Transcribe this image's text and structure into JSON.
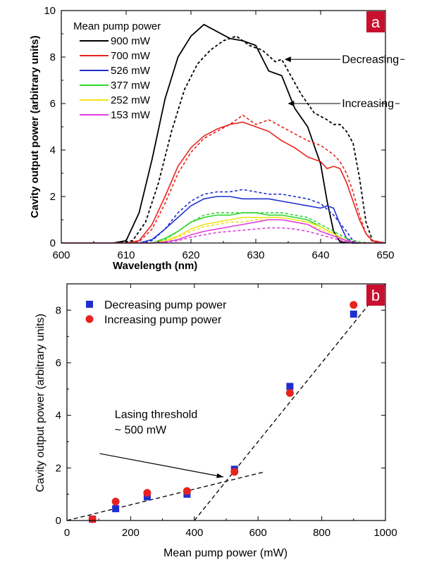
{
  "chart_data": [
    {
      "type": "line",
      "panel_label": "a",
      "panel_color": "#c8102e",
      "xlabel": "Wavelength (nm)",
      "ylabel": "Cavity output power (arbitrary units)",
      "xlim": [
        600,
        650
      ],
      "ylim": [
        0,
        10
      ],
      "xticks": [
        600,
        610,
        620,
        630,
        640,
        650
      ],
      "yticks": [
        0,
        2,
        4,
        6,
        8,
        10
      ],
      "grid": false,
      "legend_title": "Mean pump power",
      "legend_position": "top-left",
      "annotations": [
        {
          "text": "Decreasing",
          "points_to": [
            634,
            7.9
          ],
          "label_at": [
            643.5,
            7.9
          ]
        },
        {
          "text": "Increasing",
          "points_to": [
            634.5,
            6.0
          ],
          "label_at": [
            643.5,
            6.0
          ]
        }
      ],
      "series": [
        {
          "name": "900 mW",
          "color": "#000000",
          "solid": {
            "x": [
              600,
              608,
              610,
              612,
              614,
              616,
              618,
              620,
              622,
              624,
              626,
              628,
              630,
              632,
              634,
              636,
              637,
              638,
              639,
              640,
              641,
              642,
              643,
              645,
              650
            ],
            "y": [
              0,
              0,
              0.1,
              1.3,
              3.6,
              6.2,
              8.0,
              8.9,
              9.4,
              9.1,
              8.8,
              8.7,
              8.5,
              7.4,
              7.2,
              5.8,
              5.4,
              5.0,
              4.2,
              3.4,
              1.8,
              0.5,
              0.05,
              0,
              0
            ]
          },
          "dashed": {
            "x": [
              600,
              609,
              611,
              613,
              615,
              617,
              619,
              621,
              623,
              625,
              627,
              629,
              631,
              633,
              634,
              635,
              637,
              639,
              641,
              642,
              643,
              644,
              645,
              646,
              647,
              648,
              650
            ],
            "y": [
              0,
              0,
              0.1,
              0.9,
              2.6,
              4.8,
              6.6,
              7.7,
              8.3,
              8.7,
              8.9,
              8.5,
              8.3,
              7.8,
              7.9,
              7.4,
              6.4,
              5.6,
              5.3,
              5.1,
              5.1,
              4.8,
              4.3,
              2.8,
              0.9,
              0.1,
              0
            ]
          }
        },
        {
          "name": "700 mW",
          "color": "#e8231f",
          "solid": {
            "x": [
              600,
              610,
              612,
              614,
              616,
              618,
              620,
              622,
              624,
              626,
              628,
              630,
              632,
              634,
              636,
              638,
              640,
              641,
              642,
              643,
              644,
              645,
              646,
              647,
              648,
              650
            ],
            "y": [
              0,
              0,
              0.1,
              0.8,
              2.0,
              3.3,
              4.1,
              4.6,
              4.9,
              5.1,
              5.2,
              5.0,
              4.8,
              4.4,
              4.1,
              3.7,
              3.5,
              3.2,
              3.3,
              3.2,
              2.6,
              1.8,
              1.0,
              0.4,
              0.1,
              0
            ]
          },
          "dashed": {
            "x": [
              600,
              610,
              612,
              614,
              616,
              618,
              620,
              622,
              624,
              626,
              628,
              630,
              632,
              634,
              636,
              638,
              640,
              641,
              642,
              643,
              644,
              645,
              646,
              647,
              648,
              650
            ],
            "y": [
              0,
              0,
              0.05,
              0.6,
              1.7,
              3.0,
              3.9,
              4.5,
              4.8,
              5.1,
              5.5,
              5.1,
              5.3,
              5.0,
              4.7,
              4.4,
              4.2,
              4.0,
              3.8,
              3.5,
              3.0,
              2.2,
              1.2,
              0.4,
              0.05,
              0
            ]
          }
        },
        {
          "name": "526 mW",
          "color": "#1f2fcf",
          "solid": {
            "x": [
              600,
              612,
              614,
              616,
              618,
              620,
              622,
              624,
              626,
              628,
              630,
              632,
              634,
              636,
              638,
              640,
              641,
              642,
              643,
              644,
              645,
              650
            ],
            "y": [
              0,
              0,
              0.15,
              0.6,
              1.1,
              1.6,
              1.9,
              2.0,
              2.0,
              1.9,
              1.9,
              1.9,
              1.8,
              1.7,
              1.6,
              1.5,
              1.6,
              1.5,
              0.8,
              0.2,
              0,
              0
            ]
          },
          "dashed": {
            "x": [
              600,
              612,
              614,
              616,
              618,
              620,
              622,
              624,
              626,
              628,
              630,
              632,
              634,
              636,
              638,
              640,
              642,
              644,
              645,
              646,
              650
            ],
            "y": [
              0,
              0,
              0.1,
              0.6,
              1.3,
              1.8,
              2.1,
              2.2,
              2.2,
              2.3,
              2.2,
              2.1,
              2.1,
              2.0,
              1.9,
              1.7,
              1.2,
              0.5,
              0.1,
              0,
              0
            ]
          }
        },
        {
          "name": "377 mW",
          "color": "#2fd62f",
          "solid": {
            "x": [
              600,
              614,
              616,
              618,
              620,
              622,
              624,
              626,
              628,
              630,
              632,
              634,
              636,
              638,
              640,
              642,
              644,
              646,
              648,
              650
            ],
            "y": [
              0,
              0,
              0.2,
              0.5,
              0.9,
              1.1,
              1.2,
              1.2,
              1.3,
              1.3,
              1.2,
              1.2,
              1.1,
              1.0,
              0.7,
              0.4,
              0.1,
              0,
              0,
              0
            ]
          },
          "dashed": {
            "x": [
              600,
              614,
              616,
              618,
              620,
              622,
              624,
              626,
              628,
              630,
              632,
              634,
              636,
              638,
              640,
              642,
              644,
              646,
              648,
              650
            ],
            "y": [
              0,
              0,
              0.15,
              0.5,
              0.9,
              1.2,
              1.3,
              1.3,
              1.3,
              1.3,
              1.3,
              1.3,
              1.2,
              1.1,
              0.8,
              0.5,
              0.2,
              0.05,
              0,
              0
            ]
          }
        },
        {
          "name": "252 mW",
          "color": "#f2e21a",
          "solid": {
            "x": [
              600,
              614,
              616,
              618,
              620,
              622,
              624,
              626,
              628,
              630,
              632,
              634,
              636,
              638,
              640,
              642,
              644,
              646,
              648,
              650
            ],
            "y": [
              0,
              0,
              0.1,
              0.3,
              0.6,
              0.8,
              0.9,
              1.0,
              1.1,
              1.1,
              1.1,
              1.1,
              1.0,
              0.9,
              0.7,
              0.4,
              0.1,
              0,
              0,
              0
            ]
          },
          "dashed": {
            "x": [
              600,
              614,
              616,
              618,
              620,
              622,
              624,
              626,
              628,
              630,
              632,
              634,
              636,
              638,
              640,
              642,
              644,
              646,
              648,
              650
            ],
            "y": [
              0,
              0,
              0.08,
              0.25,
              0.5,
              0.7,
              0.8,
              0.9,
              0.9,
              1.0,
              1.0,
              1.0,
              0.9,
              0.8,
              0.6,
              0.3,
              0.1,
              0,
              0,
              0
            ]
          }
        },
        {
          "name": "153 mW",
          "color": "#e040e0",
          "solid": {
            "x": [
              600,
              614,
              616,
              618,
              620,
              622,
              624,
              626,
              628,
              630,
              632,
              634,
              636,
              638,
              640,
              642,
              644,
              646,
              650
            ],
            "y": [
              0,
              0,
              0.05,
              0.15,
              0.35,
              0.5,
              0.6,
              0.7,
              0.8,
              0.9,
              1.0,
              1.0,
              0.9,
              0.8,
              0.5,
              0.3,
              0.1,
              0,
              0
            ]
          },
          "dashed": {
            "x": [
              600,
              614,
              616,
              618,
              620,
              622,
              624,
              626,
              628,
              630,
              632,
              634,
              636,
              638,
              640,
              642,
              644,
              646,
              650
            ],
            "y": [
              0,
              0,
              0.03,
              0.1,
              0.25,
              0.35,
              0.45,
              0.5,
              0.55,
              0.6,
              0.65,
              0.65,
              0.6,
              0.5,
              0.35,
              0.2,
              0.05,
              0,
              0
            ]
          }
        }
      ]
    },
    {
      "type": "scatter",
      "panel_label": "b",
      "panel_color": "#c8102e",
      "xlabel": "Mean pump power (mW)",
      "ylabel": "Cavity output power (arbitrary units)",
      "xlim": [
        0,
        1000
      ],
      "ylim": [
        0,
        9
      ],
      "xticks": [
        0,
        200,
        400,
        600,
        800,
        1000
      ],
      "yticks": [
        0,
        2,
        4,
        6,
        8
      ],
      "grid": false,
      "legend_position": "top-left",
      "annotation": {
        "lines": [
          "Lasing threshold",
          "~ 500 mW"
        ],
        "label_at": [
          150,
          3.9
        ],
        "arrow_from": [
          430,
          1.85
        ],
        "arrow_to": [
          500,
          1.55
        ]
      },
      "series": [
        {
          "name": "Decreasing pump power",
          "marker": "square",
          "color": "#1f2fcf",
          "x": [
            80,
            153,
            252,
            377,
            526,
            700,
            900
          ],
          "y": [
            0.05,
            0.45,
            0.9,
            1.0,
            1.95,
            5.1,
            7.85
          ]
        },
        {
          "name": "Increasing pump power",
          "marker": "circle",
          "color": "#e8231f",
          "x": [
            80,
            153,
            252,
            377,
            526,
            700,
            900
          ],
          "y": [
            0.05,
            0.72,
            1.05,
            1.12,
            1.85,
            4.85,
            8.2
          ]
        }
      ],
      "fit_lines": [
        {
          "x": [
            0,
            620
          ],
          "y": [
            0.0,
            1.85
          ]
        },
        {
          "x": [
            400,
            1000
          ],
          "y": [
            0.0,
            9.2
          ]
        }
      ]
    }
  ]
}
